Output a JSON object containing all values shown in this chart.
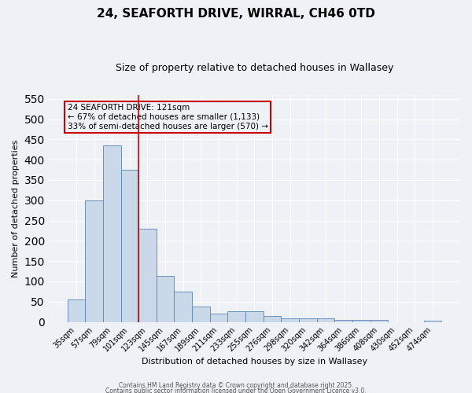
{
  "title_line1": "24, SEAFORTH DRIVE, WIRRAL, CH46 0TD",
  "title_line2": "Size of property relative to detached houses in Wallasey",
  "xlabel": "Distribution of detached houses by size in Wallasey",
  "ylabel": "Number of detached properties",
  "categories": [
    "35sqm",
    "57sqm",
    "79sqm",
    "101sqm",
    "123sqm",
    "145sqm",
    "167sqm",
    "189sqm",
    "211sqm",
    "233sqm",
    "255sqm",
    "276sqm",
    "298sqm",
    "320sqm",
    "342sqm",
    "364sqm",
    "386sqm",
    "408sqm",
    "430sqm",
    "452sqm",
    "474sqm"
  ],
  "values": [
    55,
    300,
    435,
    375,
    230,
    113,
    75,
    38,
    20,
    27,
    27,
    15,
    8,
    8,
    8,
    5,
    5,
    5,
    0,
    0,
    3
  ],
  "bar_color": "#c9d9ea",
  "bar_edge_color": "#5b84b1",
  "vline_color": "#cc0000",
  "annotation_text": "24 SEAFORTH DRIVE: 121sqm\n← 67% of detached houses are smaller (1,133)\n33% of semi-detached houses are larger (570) →",
  "annotation_box_color": "#cc0000",
  "annotation_text_color": "#000000",
  "background_color": "#eef2f7",
  "grid_color": "#ffffff",
  "ylim_max": 560,
  "yticks": [
    0,
    50,
    100,
    150,
    200,
    250,
    300,
    350,
    400,
    450,
    500,
    550
  ],
  "footer_line1": "Contains HM Land Registry data © Crown copyright and database right 2025.",
  "footer_line2": "Contains public sector information licensed under the Open Government Licence v3.0."
}
